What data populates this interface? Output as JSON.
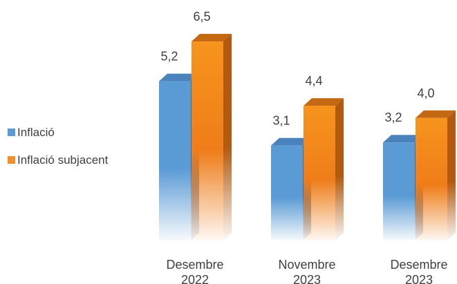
{
  "chart_data": {
    "type": "bar",
    "categories": [
      [
        "Desembre",
        "2022"
      ],
      [
        "Novembre",
        "2023"
      ],
      [
        "Desembre",
        "2023"
      ]
    ],
    "series": [
      {
        "name": "Inflació",
        "values": [
          "5,2",
          "3,1",
          "3,2"
        ],
        "numeric": [
          5.2,
          3.1,
          3.2
        ],
        "color": "#5b9bd5"
      },
      {
        "name": "Inflació subjacent",
        "values": [
          "6,5",
          "4,4",
          "4,0"
        ],
        "numeric": [
          6.5,
          4.4,
          4.0
        ],
        "color": "#f28e2b"
      }
    ],
    "legend_position": "left",
    "grid": false,
    "style": "3d-column-gradient",
    "ylim": [
      0,
      6.5
    ]
  }
}
